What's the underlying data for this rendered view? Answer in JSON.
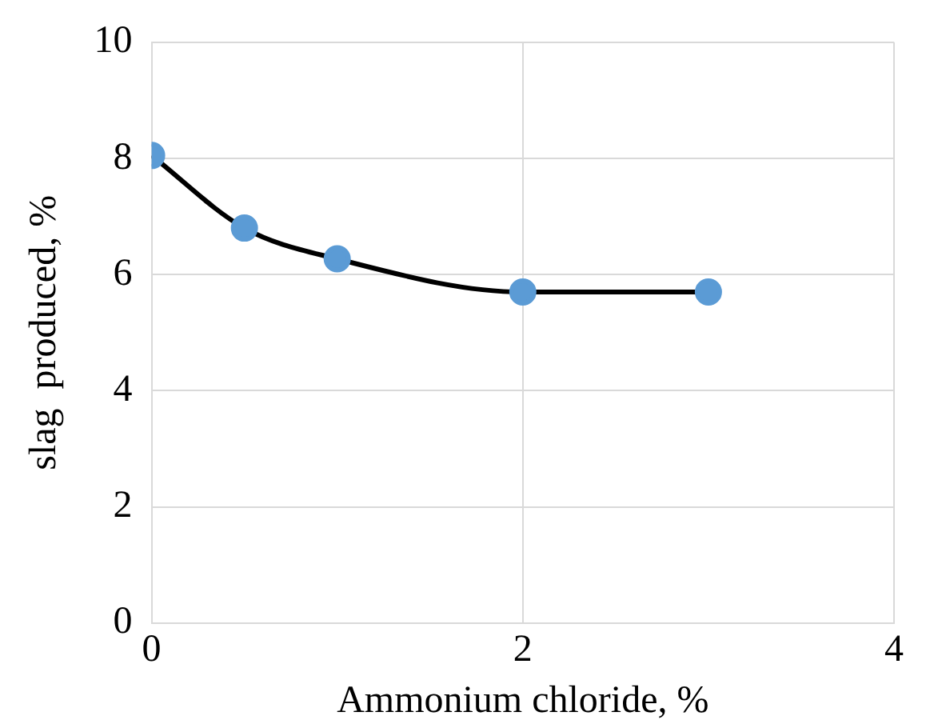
{
  "chart_data": {
    "type": "line",
    "xlabel": "Ammonium chloride, %",
    "ylabel": "slag  produced, %",
    "x": [
      0,
      0.5,
      1,
      2,
      3
    ],
    "series": [
      {
        "color": "#000000",
        "values": [
          8.05,
          6.8,
          6.27,
          5.7,
          5.7
        ]
      }
    ],
    "xlim": [
      0,
      4
    ],
    "xticks": [
      0,
      2,
      4
    ],
    "ylim": [
      0,
      10
    ],
    "yticks": [
      0,
      2,
      4,
      6,
      8,
      10
    ],
    "grid": true,
    "marker": "circle",
    "line_style": "solid",
    "legend": false
  }
}
